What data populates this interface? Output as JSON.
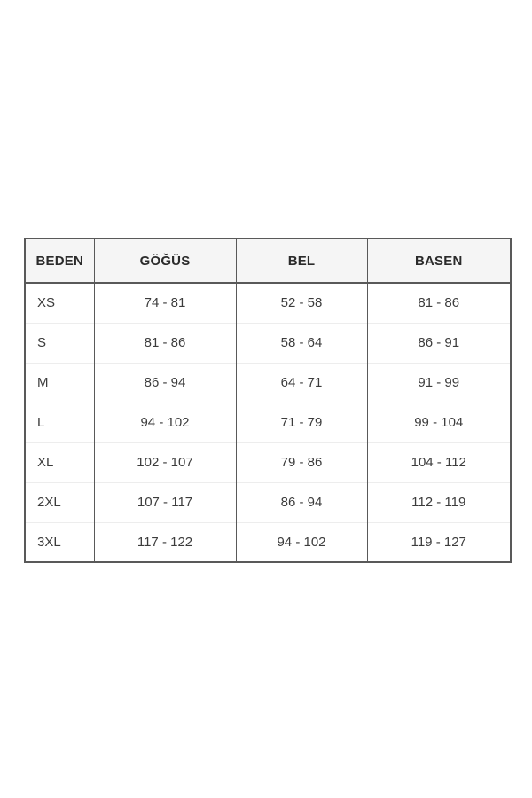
{
  "chart_data": {
    "type": "table",
    "title": "",
    "headers": [
      "BEDEN",
      "GÖĞÜS",
      "BEL",
      "BASEN"
    ],
    "rows": [
      [
        "XS",
        "74 - 81",
        "52 - 58",
        "81 - 86"
      ],
      [
        "S",
        "81 - 86",
        "58 - 64",
        "86 - 91"
      ],
      [
        "M",
        "86 - 94",
        "64 - 71",
        "91 - 99"
      ],
      [
        "L",
        "94 - 102",
        "71 - 79",
        "99 - 104"
      ],
      [
        "XL",
        "102 - 107",
        "79 - 86",
        "104 - 112"
      ],
      [
        "2XL",
        "107 - 117",
        "86 - 94",
        "112 - 119"
      ],
      [
        "3XL",
        "117 - 122",
        "94 - 102",
        "119 - 127"
      ]
    ],
    "layout": {
      "header_background": "#f5f5f5",
      "border_color": "#595959",
      "row_divider_color": "#ededed",
      "text_color": "#333333",
      "page_background": "#ffffff"
    }
  }
}
